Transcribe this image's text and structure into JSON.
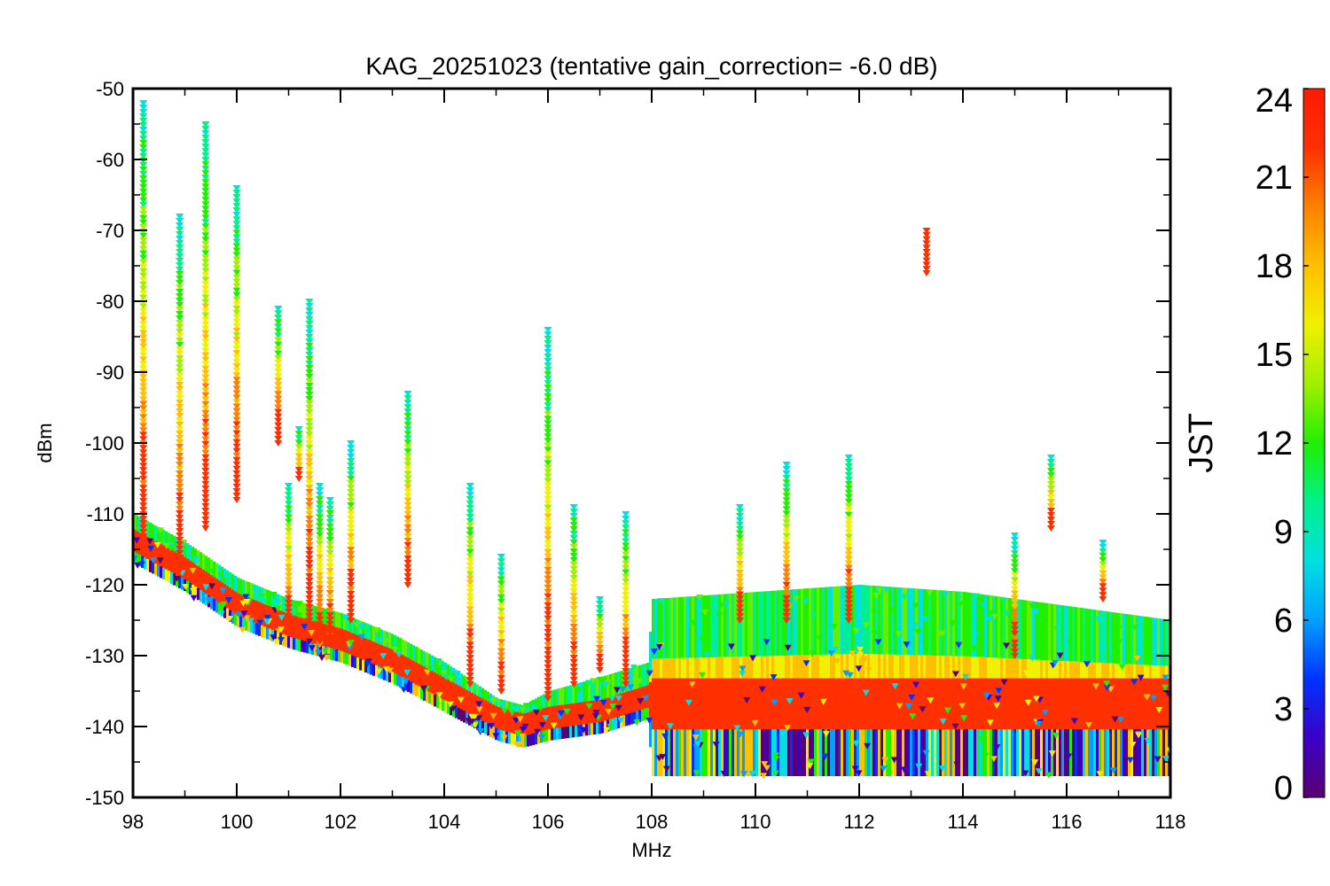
{
  "chart_data": {
    "type": "scatter",
    "title": "KAG_20251023 (tentative gain_correction= -6.0 dB)",
    "xlabel": "MHz",
    "ylabel": "dBm",
    "xlim": [
      98,
      118
    ],
    "ylim": [
      -150,
      -50
    ],
    "x_ticks": [
      "98",
      "100",
      "102",
      "104",
      "106",
      "108",
      "110",
      "112",
      "114",
      "116",
      "118"
    ],
    "y_ticks": [
      "-50",
      "-60",
      "-70",
      "-80",
      "-90",
      "-100",
      "-110",
      "-120",
      "-130",
      "-140",
      "-150"
    ],
    "colorbar": {
      "label": "JST",
      "range": [
        0,
        24
      ],
      "ticks": [
        "0",
        "3",
        "6",
        "9",
        "12",
        "15",
        "18",
        "21",
        "24"
      ],
      "colormap": "rainbow",
      "colors": [
        "#5a0070",
        "#3b00c8",
        "#0032ff",
        "#00a0ff",
        "#00e0e0",
        "#00f08c",
        "#20f000",
        "#a0f000",
        "#f0f000",
        "#ffc000",
        "#ff8000",
        "#ff3000",
        "#ff1a00"
      ]
    },
    "noise_floor": {
      "description": "dense band of measurements across all hours",
      "x": [
        98.0,
        99.0,
        100.0,
        101.0,
        102.0,
        103.0,
        104.0,
        105.0,
        105.5,
        106.0,
        107.0,
        107.9,
        108.0,
        110.0,
        112.0,
        114.0,
        116.0,
        118.0
      ],
      "median_dBm": [
        -114,
        -118,
        -123,
        -126,
        -128,
        -131,
        -135,
        -139,
        -140,
        -139,
        -138,
        -136,
        -135,
        -135,
        -135,
        -135,
        -135,
        -135
      ],
      "spread_above_dBm": [
        4,
        4,
        4,
        4,
        4,
        4,
        4,
        3,
        3,
        4,
        5,
        5,
        13,
        14,
        15,
        14,
        12,
        10
      ],
      "spread_below_dBm": [
        3,
        3,
        3,
        3,
        3,
        3,
        3,
        3,
        3,
        3,
        3,
        3,
        12,
        12,
        12,
        12,
        12,
        12
      ]
    },
    "signals": [
      {
        "freq": 98.2,
        "top_dBm": -52,
        "bottom_dBm": -115
      },
      {
        "freq": 98.9,
        "top_dBm": -68,
        "bottom_dBm": -118
      },
      {
        "freq": 99.4,
        "top_dBm": -55,
        "bottom_dBm": -112
      },
      {
        "freq": 100.0,
        "top_dBm": -64,
        "bottom_dBm": -108
      },
      {
        "freq": 100.8,
        "top_dBm": -81,
        "bottom_dBm": -100
      },
      {
        "freq": 101.0,
        "top_dBm": -106,
        "bottom_dBm": -125
      },
      {
        "freq": 101.2,
        "top_dBm": -98,
        "bottom_dBm": -105
      },
      {
        "freq": 101.4,
        "top_dBm": -80,
        "bottom_dBm": -125
      },
      {
        "freq": 101.6,
        "top_dBm": -106,
        "bottom_dBm": -128
      },
      {
        "freq": 101.8,
        "top_dBm": -108,
        "bottom_dBm": -128
      },
      {
        "freq": 102.2,
        "top_dBm": -100,
        "bottom_dBm": -125
      },
      {
        "freq": 103.3,
        "top_dBm": -93,
        "bottom_dBm": -120
      },
      {
        "freq": 104.5,
        "top_dBm": -106,
        "bottom_dBm": -134
      },
      {
        "freq": 105.1,
        "top_dBm": -116,
        "bottom_dBm": -135
      },
      {
        "freq": 106.0,
        "top_dBm": -84,
        "bottom_dBm": -136
      },
      {
        "freq": 106.5,
        "top_dBm": -109,
        "bottom_dBm": -134
      },
      {
        "freq": 107.0,
        "top_dBm": -122,
        "bottom_dBm": -132
      },
      {
        "freq": 107.5,
        "top_dBm": -110,
        "bottom_dBm": -134
      },
      {
        "freq": 109.7,
        "top_dBm": -109,
        "bottom_dBm": -125
      },
      {
        "freq": 110.6,
        "top_dBm": -103,
        "bottom_dBm": -125
      },
      {
        "freq": 111.8,
        "top_dBm": -102,
        "bottom_dBm": -125
      },
      {
        "freq": 113.3,
        "top_dBm": -70,
        "bottom_dBm": -76
      },
      {
        "freq": 115.0,
        "top_dBm": -113,
        "bottom_dBm": -130
      },
      {
        "freq": 115.7,
        "top_dBm": -102,
        "bottom_dBm": -112
      },
      {
        "freq": 116.7,
        "top_dBm": -114,
        "bottom_dBm": -122
      }
    ]
  }
}
